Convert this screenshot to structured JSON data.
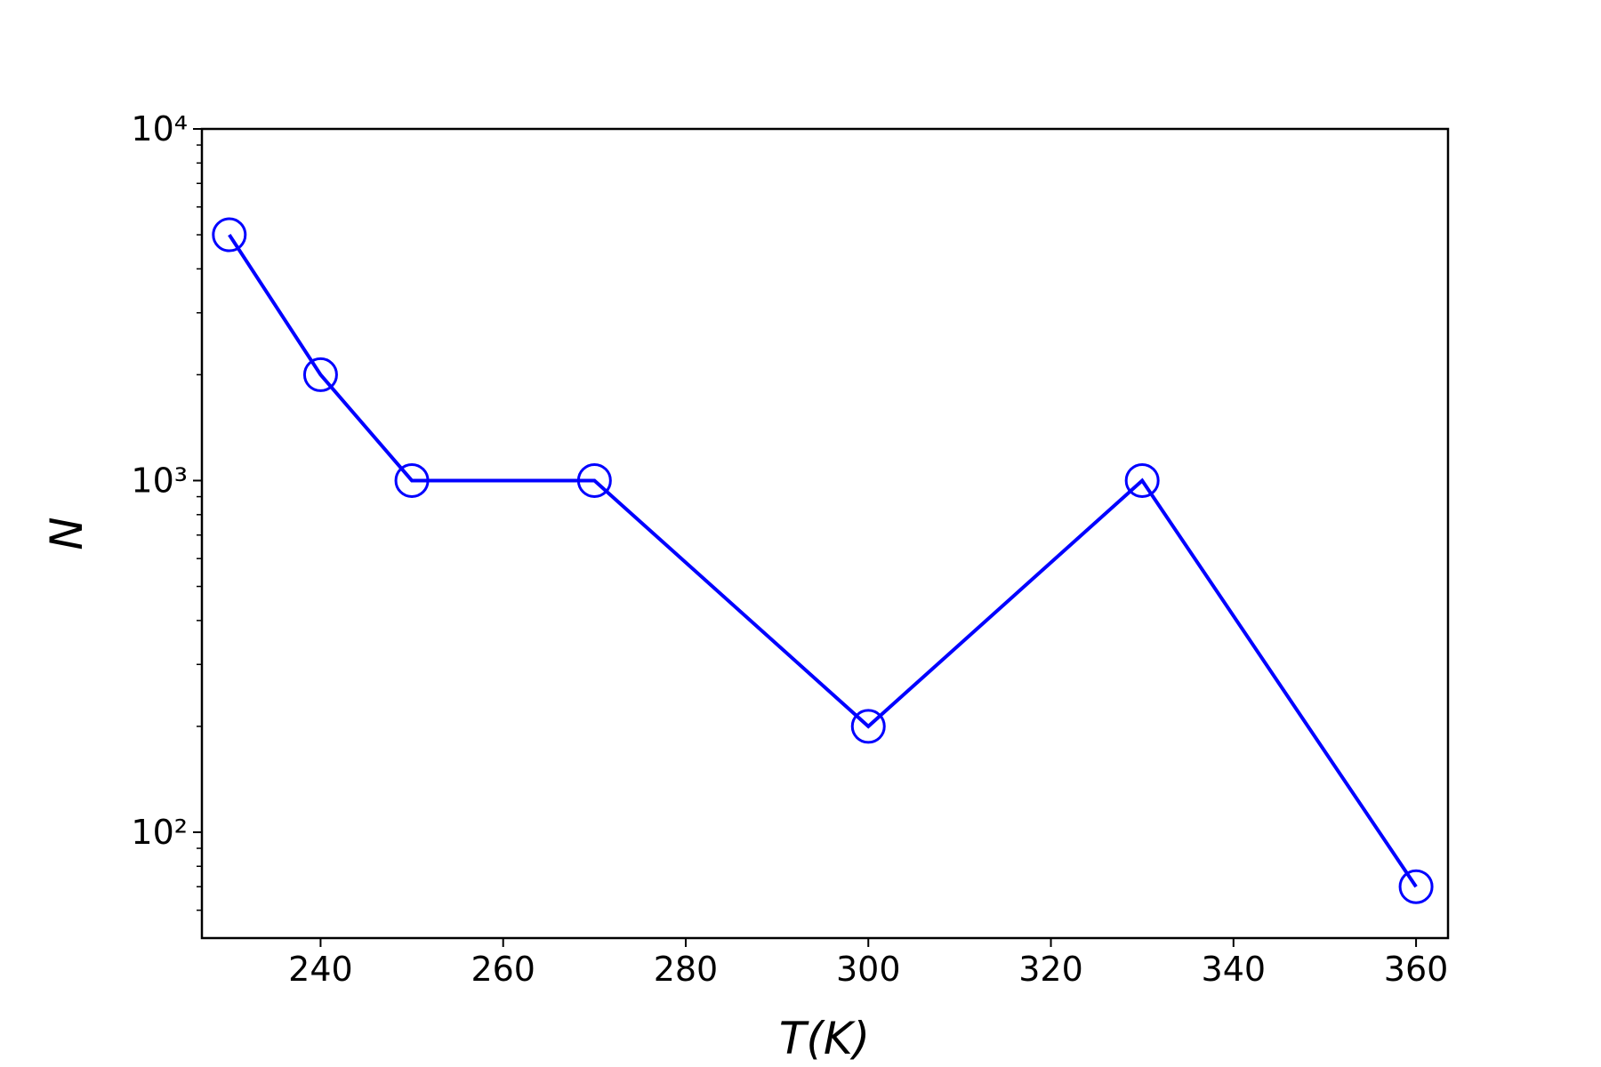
{
  "chart_data": {
    "type": "line",
    "x_label": "T(K)",
    "y_label": "N",
    "x": [
      230,
      240,
      250,
      270,
      300,
      330,
      360
    ],
    "series": [
      {
        "color": "#0000ff",
        "marker": "open-circle",
        "values": [
          5000,
          2000,
          1000,
          1000,
          200,
          1000,
          70
        ]
      }
    ],
    "xlim": [
      227,
      363.5
    ],
    "xticks": [
      240,
      260,
      280,
      300,
      320,
      340,
      360
    ],
    "ylim": [
      50,
      10000
    ],
    "y_scale": "log",
    "yticks": [
      {
        "value": 100,
        "label": "10²"
      },
      {
        "value": 1000,
        "label": "10³"
      },
      {
        "value": 10000,
        "label": "10⁴"
      }
    ],
    "yminor_ticks": [
      60,
      70,
      80,
      90,
      200,
      300,
      400,
      500,
      600,
      700,
      800,
      900,
      2000,
      3000,
      4000,
      5000,
      6000,
      7000,
      8000,
      9000
    ],
    "grid": false
  }
}
